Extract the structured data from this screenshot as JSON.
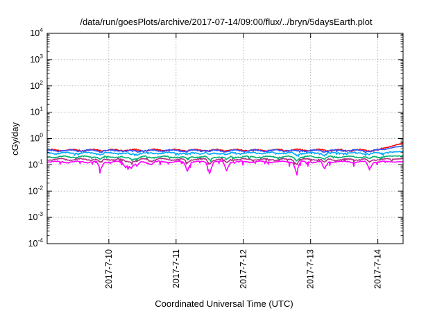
{
  "chart_data": {
    "type": "line",
    "title": "/data/run/goesPlots/archive/2017-07-14/09:00/flux/../bryn/5daysEarth.plot",
    "xlabel": "Coordinated Universal Time (UTC)",
    "ylabel": "cGy/day",
    "y_scale": "log",
    "ylim": [
      0.0001,
      10000
    ],
    "y_ticks": [
      {
        "base": "10",
        "exp": "-4",
        "value": 0.0001
      },
      {
        "base": "10",
        "exp": "-3",
        "value": 0.001
      },
      {
        "base": "10",
        "exp": "-2",
        "value": 0.01
      },
      {
        "base": "10",
        "exp": "-1",
        "value": 0.1
      },
      {
        "base": "10",
        "exp": "0",
        "value": 1
      },
      {
        "base": "10",
        "exp": "1",
        "value": 10
      },
      {
        "base": "10",
        "exp": "2",
        "value": 100
      },
      {
        "base": "10",
        "exp": "3",
        "value": 1000
      },
      {
        "base": "10",
        "exp": "4",
        "value": 10000
      }
    ],
    "xlim": [
      "2017-07-09T02:00",
      "2017-07-14T09:00"
    ],
    "x_ticks": [
      "2017-7-10",
      "2017-7-11",
      "2017-7-12",
      "2017-7-13",
      "2017-7-14"
    ],
    "grid": true,
    "legend": "none",
    "series": [
      {
        "color": "#ff0000",
        "base": 0.36,
        "end": 0.65,
        "dips": 0.0,
        "noise": 0.05
      },
      {
        "color": "#3355ff",
        "base": 0.35,
        "end": 0.52,
        "dips": 0.15,
        "noise": 0.05
      },
      {
        "color": "#00aaff",
        "base": 0.28,
        "end": 0.32,
        "dips": 0.3,
        "noise": 0.05
      },
      {
        "color": "#00b070",
        "base": 0.2,
        "end": 0.22,
        "dips": 0.4,
        "noise": 0.04
      },
      {
        "color": "#b03080",
        "base": 0.16,
        "end": 0.17,
        "dips": 0.5,
        "noise": 0.04
      },
      {
        "color": "#ff00ff",
        "base": 0.13,
        "end": 0.13,
        "dips": 1.0,
        "noise": 0.04
      }
    ],
    "dip_events": [
      {
        "t": "2017-07-09T21:00",
        "depth": 0.55
      },
      {
        "t": "2017-07-10T06:00",
        "depth": 0.4
      },
      {
        "t": "2017-07-10T08:00",
        "depth": 0.45
      },
      {
        "t": "2017-07-10T10:00",
        "depth": 0.35
      },
      {
        "t": "2017-07-10T15:00",
        "depth": 0.2
      },
      {
        "t": "2017-07-11T04:00",
        "depth": 0.55
      },
      {
        "t": "2017-07-11T12:00",
        "depth": 0.65
      },
      {
        "t": "2017-07-11T18:00",
        "depth": 0.55
      },
      {
        "t": "2017-07-12T19:00",
        "depth": 0.65
      },
      {
        "t": "2017-07-13T05:00",
        "depth": 0.5
      },
      {
        "t": "2017-07-13T21:00",
        "depth": 0.5
      }
    ]
  }
}
